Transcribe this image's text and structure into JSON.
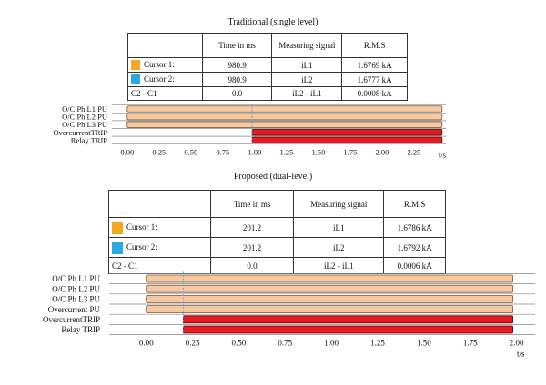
{
  "colors": {
    "pickup_bar": "#f7c9a3",
    "pickup_border": "#7a5a3a",
    "trip_bar": "#e51a24",
    "trip_border": "#5a0000",
    "cursor_line": "#6fa6d6",
    "cursor1_swatch": "#f5a623",
    "cursor2_swatch": "#29a9e0"
  },
  "chart_data": [
    {
      "type": "timing",
      "title": "Traditional (single level)",
      "xlabel": "t/s",
      "xlim": [
        -0.12,
        2.5
      ],
      "tick_labels": [
        "0.00",
        "0.25",
        "0.50",
        "0.75",
        "1.00",
        "1.25",
        "1.50",
        "1.75",
        "2.00",
        "2.25"
      ],
      "cursor_time": 0.98,
      "bar_end": 2.47,
      "rows": [
        {
          "label": "O/C Ph L1 PU",
          "start": 0.0,
          "kind": "pickup"
        },
        {
          "label": "O/C Ph L2 PU",
          "start": 0.0,
          "kind": "pickup"
        },
        {
          "label": "O/C Ph L3 PU",
          "start": 0.0,
          "kind": "pickup"
        },
        {
          "label": "OvercurrentTRIP",
          "start": 0.98,
          "kind": "trip"
        },
        {
          "label": "Relay TRIP",
          "start": 0.98,
          "kind": "trip"
        }
      ],
      "table": {
        "headers": [
          "",
          "Time in ms",
          "Measuring signal",
          "R.M.S"
        ],
        "rows": [
          [
            "Cursor 1:",
            "980.9",
            "iL1",
            "1.6769 kA"
          ],
          [
            "Cursor 2:",
            "980.9",
            "iL2",
            "1.6777 kA"
          ],
          [
            "C2 - C1",
            "0.0",
            "iL2 - iL1",
            "0.0008 kA"
          ]
        ]
      }
    },
    {
      "type": "timing",
      "title": "Proposed (dual-level)",
      "xlabel": "t/s",
      "xlim": [
        -0.2,
        2.1
      ],
      "tick_labels": [
        "0.00",
        "0.25",
        "0.50",
        "0.75",
        "1.00",
        "1.25",
        "1.50",
        "1.75",
        "2.00"
      ],
      "cursor_time": 0.2,
      "bar_end": 1.98,
      "rows": [
        {
          "label": "O/C Ph L1 PU",
          "start": 0.0,
          "kind": "pickup"
        },
        {
          "label": "O/C Ph L2 PU",
          "start": 0.0,
          "kind": "pickup"
        },
        {
          "label": "O/C Ph L3 PU",
          "start": 0.0,
          "kind": "pickup"
        },
        {
          "label": "Overcurrent PU",
          "start": 0.0,
          "kind": "pickup"
        },
        {
          "label": "OvercurrentTRIP",
          "start": 0.2,
          "kind": "trip"
        },
        {
          "label": "Relay TRIP",
          "start": 0.2,
          "kind": "trip"
        }
      ],
      "table": {
        "headers": [
          "",
          "Time in ms",
          "Measuring signal",
          "R.M.S"
        ],
        "rows": [
          [
            "Cursor 1:",
            "201.2",
            "iL1",
            "1.6786 kA"
          ],
          [
            "Cursor 2:",
            "201.2",
            "iL2",
            "1.6792 kA"
          ],
          [
            "C2 - C1",
            "0.0",
            "iL2 - iL1",
            "0.0006 kA"
          ]
        ]
      }
    }
  ]
}
